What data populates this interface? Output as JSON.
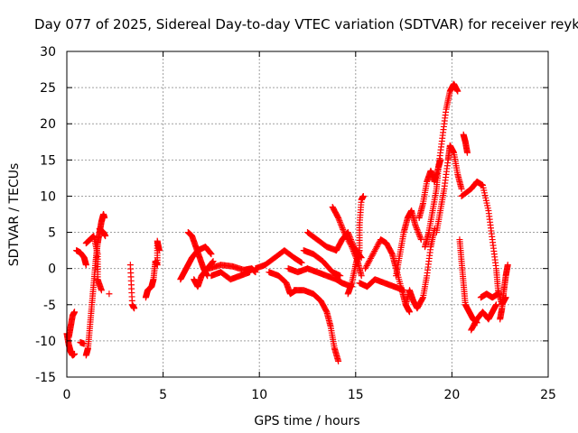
{
  "chart_data": {
    "type": "scatter",
    "title": "Day 077 of 2025, Sidereal Day-to-day VTEC variation (SDTVAR) for receiver reyk",
    "xlabel": "GPS time / hours",
    "ylabel": "SDTVAR / TECUs",
    "xlim": [
      0,
      25
    ],
    "ylim": [
      -15,
      30
    ],
    "xticks": [
      "0",
      "5",
      "10",
      "15",
      "20",
      "25"
    ],
    "yticks": [
      "-15",
      "-10",
      "-5",
      "0",
      "5",
      "10",
      "15",
      "20",
      "25",
      "30"
    ],
    "grid": true,
    "marker": "plus",
    "color": "#ff0000",
    "series": [
      {
        "name": "track-01",
        "points": [
          [
            0,
            -9
          ],
          [
            0.1,
            -10.5
          ],
          [
            0.2,
            -11.5
          ],
          [
            0.3,
            -12
          ],
          [
            0.4,
            -11.8
          ]
        ]
      },
      {
        "name": "track-02",
        "points": [
          [
            0.1,
            -9.5
          ],
          [
            0.2,
            -8
          ],
          [
            0.3,
            -6.5
          ],
          [
            0.4,
            -6
          ]
        ]
      },
      {
        "name": "track-03",
        "points": [
          [
            0.5,
            2.5
          ],
          [
            0.7,
            2.2
          ],
          [
            0.9,
            1.5
          ],
          [
            1.0,
            0.5
          ]
        ]
      },
      {
        "name": "track-04",
        "points": [
          [
            0.7,
            -10.2
          ],
          [
            0.9,
            -10.4
          ]
        ]
      },
      {
        "name": "track-05",
        "points": [
          [
            1.0,
            -12
          ],
          [
            1.1,
            -11
          ],
          [
            1.2,
            -8
          ],
          [
            1.3,
            -5
          ],
          [
            1.4,
            -2
          ],
          [
            1.5,
            1
          ],
          [
            1.6,
            3.5
          ],
          [
            1.7,
            5
          ],
          [
            1.8,
            6.5
          ],
          [
            1.9,
            7.5
          ],
          [
            1.95,
            7
          ]
        ]
      },
      {
        "name": "track-06",
        "points": [
          [
            1.0,
            3.5
          ],
          [
            1.2,
            4
          ],
          [
            1.4,
            4.5
          ],
          [
            1.6,
            2
          ],
          [
            1.6,
            -1.5
          ],
          [
            1.8,
            -3
          ]
        ]
      },
      {
        "name": "track-07",
        "points": [
          [
            1.7,
            5.5
          ],
          [
            1.9,
            5
          ],
          [
            2.0,
            4.5
          ]
        ]
      },
      {
        "name": "track-08",
        "points": [
          [
            2.2,
            -3.5
          ]
        ]
      },
      {
        "name": "track-09",
        "points": [
          [
            3.3,
            0.5
          ],
          [
            3.4,
            -5
          ],
          [
            3.5,
            -5.5
          ]
        ]
      },
      {
        "name": "track-10",
        "points": [
          [
            4.1,
            -4
          ],
          [
            4.2,
            -3
          ],
          [
            4.4,
            -2.5
          ],
          [
            4.5,
            -1.5
          ],
          [
            4.6,
            1
          ],
          [
            4.7,
            0.5
          ],
          [
            4.7,
            3.8
          ],
          [
            4.8,
            2.5
          ]
        ]
      },
      {
        "name": "track-11",
        "points": [
          [
            5.9,
            -1.5
          ],
          [
            6.1,
            -0.5
          ],
          [
            6.3,
            0.5
          ],
          [
            6.5,
            1.5
          ],
          [
            6.8,
            2.5
          ],
          [
            7.2,
            3
          ],
          [
            7.5,
            2
          ]
        ]
      },
      {
        "name": "track-12",
        "points": [
          [
            6.3,
            5
          ],
          [
            6.5,
            4.5
          ],
          [
            6.7,
            3
          ],
          [
            6.9,
            1.5
          ],
          [
            7.1,
            0
          ],
          [
            7.3,
            -1
          ]
        ]
      },
      {
        "name": "track-13",
        "points": [
          [
            6.6,
            -1.5
          ],
          [
            6.8,
            -2.5
          ],
          [
            7.0,
            -1
          ],
          [
            7.3,
            0
          ],
          [
            7.6,
            1
          ]
        ]
      },
      {
        "name": "track-14",
        "points": [
          [
            7.4,
            0
          ],
          [
            8.0,
            0.5
          ],
          [
            8.6,
            0.3
          ],
          [
            9.2,
            -0.2
          ],
          [
            9.6,
            0
          ],
          [
            9.8,
            -0.5
          ]
        ]
      },
      {
        "name": "track-15",
        "points": [
          [
            7.5,
            -1
          ],
          [
            8.0,
            -0.5
          ],
          [
            8.5,
            -1.5
          ],
          [
            9.0,
            -1
          ],
          [
            9.5,
            -0.5
          ]
        ]
      },
      {
        "name": "track-16",
        "points": [
          [
            9.8,
            0
          ],
          [
            10.3,
            0.5
          ],
          [
            10.8,
            1.5
          ],
          [
            11.3,
            2.5
          ],
          [
            11.8,
            1.5
          ],
          [
            12.2,
            0.8
          ]
        ]
      },
      {
        "name": "track-17",
        "points": [
          [
            10.5,
            -0.5
          ],
          [
            11,
            -1
          ],
          [
            11.4,
            -2
          ],
          [
            11.6,
            -3.5
          ],
          [
            11.9,
            -3
          ]
        ]
      },
      {
        "name": "track-18",
        "points": [
          [
            11.8,
            -3
          ],
          [
            12.3,
            -3
          ],
          [
            12.8,
            -3.5
          ],
          [
            13.2,
            -4.5
          ],
          [
            13.5,
            -6
          ],
          [
            13.7,
            -8
          ],
          [
            13.9,
            -11
          ],
          [
            14.1,
            -12.8
          ]
        ]
      },
      {
        "name": "track-19",
        "points": [
          [
            11.5,
            0
          ],
          [
            12,
            -0.5
          ],
          [
            12.5,
            0
          ],
          [
            13,
            -0.5
          ],
          [
            13.5,
            -1
          ],
          [
            14,
            -1.5
          ],
          [
            14.3,
            -2
          ],
          [
            14.8,
            -2.5
          ]
        ]
      },
      {
        "name": "track-20",
        "points": [
          [
            12.3,
            2.5
          ],
          [
            12.8,
            2
          ],
          [
            13.3,
            1
          ],
          [
            13.8,
            -0.5
          ],
          [
            14.2,
            -1
          ]
        ]
      },
      {
        "name": "track-21",
        "points": [
          [
            12.5,
            5
          ],
          [
            13,
            4
          ],
          [
            13.5,
            3
          ],
          [
            14,
            2.5
          ],
          [
            14.3,
            4
          ],
          [
            14.6,
            5
          ],
          [
            14.9,
            3
          ],
          [
            15.3,
            1.5
          ]
        ]
      },
      {
        "name": "track-22",
        "points": [
          [
            13.8,
            8.5
          ],
          [
            14.1,
            7
          ],
          [
            14.4,
            5
          ],
          [
            14.8,
            3
          ],
          [
            15.1,
            1
          ],
          [
            15.3,
            -1
          ]
        ]
      },
      {
        "name": "track-23",
        "points": [
          [
            14.6,
            -3.5
          ],
          [
            14.8,
            -2
          ],
          [
            15.0,
            0.5
          ],
          [
            15.2,
            2.5
          ],
          [
            15.2,
            6
          ],
          [
            15.3,
            9.5
          ],
          [
            15.4,
            10
          ]
        ]
      },
      {
        "name": "track-24",
        "points": [
          [
            15.2,
            -2
          ],
          [
            15.6,
            -2.5
          ],
          [
            16.0,
            -1.5
          ],
          [
            16.5,
            -2
          ],
          [
            17,
            -2.5
          ],
          [
            17.5,
            -3
          ]
        ]
      },
      {
        "name": "track-25",
        "points": [
          [
            15.5,
            0
          ],
          [
            15.9,
            2
          ],
          [
            16.3,
            4
          ],
          [
            16.6,
            3.5
          ],
          [
            16.9,
            2
          ],
          [
            17.1,
            0
          ],
          [
            17.4,
            -3
          ],
          [
            17.6,
            -5
          ],
          [
            17.8,
            -6
          ]
        ]
      },
      {
        "name": "track-26",
        "points": [
          [
            17.1,
            -1
          ],
          [
            17.3,
            2
          ],
          [
            17.5,
            5
          ],
          [
            17.7,
            7
          ],
          [
            17.9,
            8
          ],
          [
            18.1,
            6
          ],
          [
            18.4,
            4
          ]
        ]
      },
      {
        "name": "track-27",
        "points": [
          [
            17.6,
            -5
          ],
          [
            17.8,
            -3
          ],
          [
            18,
            -4.5
          ],
          [
            18.2,
            -5.5
          ],
          [
            18.5,
            -4
          ],
          [
            18.7,
            -1
          ],
          [
            18.9,
            3
          ],
          [
            19.1,
            5.5
          ]
        ]
      },
      {
        "name": "track-28",
        "points": [
          [
            18.3,
            7
          ],
          [
            18.5,
            9
          ],
          [
            18.7,
            12
          ],
          [
            18.9,
            13.5
          ],
          [
            19.1,
            12
          ],
          [
            19.3,
            14
          ],
          [
            19.4,
            15
          ]
        ]
      },
      {
        "name": "track-29",
        "points": [
          [
            18.6,
            3
          ],
          [
            18.8,
            5
          ],
          [
            19.0,
            8
          ],
          [
            19.2,
            11
          ],
          [
            19.3,
            14
          ],
          [
            19.5,
            18
          ],
          [
            19.7,
            22
          ],
          [
            19.9,
            24.5
          ],
          [
            20.1,
            25.5
          ],
          [
            20.3,
            24.5
          ]
        ]
      },
      {
        "name": "track-30",
        "points": [
          [
            19.2,
            5
          ],
          [
            19.4,
            8
          ],
          [
            19.6,
            11
          ],
          [
            19.8,
            15
          ],
          [
            19.9,
            17
          ],
          [
            20.1,
            16
          ],
          [
            20.3,
            13
          ],
          [
            20.5,
            11
          ]
        ]
      },
      {
        "name": "track-31",
        "points": [
          [
            20.4,
            4
          ],
          [
            20.5,
            1
          ],
          [
            20.6,
            -2
          ],
          [
            20.7,
            -5
          ],
          [
            20.9,
            -6
          ],
          [
            21.1,
            -7
          ],
          [
            21.3,
            -7.5
          ]
        ]
      },
      {
        "name": "track-32",
        "points": [
          [
            20.5,
            10
          ],
          [
            21,
            11
          ],
          [
            21.3,
            12
          ],
          [
            21.6,
            11.5
          ],
          [
            21.9,
            8
          ],
          [
            22.1,
            4
          ],
          [
            22.3,
            0
          ],
          [
            22.4,
            -3
          ],
          [
            22.6,
            -5
          ],
          [
            22.8,
            -4
          ]
        ]
      },
      {
        "name": "track-33",
        "points": [
          [
            20.6,
            18.5
          ],
          [
            20.7,
            17.5
          ],
          [
            20.8,
            16
          ]
        ]
      },
      {
        "name": "track-34",
        "points": [
          [
            21.0,
            -8.5
          ],
          [
            21.3,
            -7
          ],
          [
            21.6,
            -6
          ],
          [
            21.9,
            -7
          ],
          [
            22.1,
            -6
          ],
          [
            22.3,
            -5
          ]
        ]
      },
      {
        "name": "track-35",
        "points": [
          [
            21.5,
            -4
          ],
          [
            21.8,
            -3.5
          ],
          [
            22.1,
            -4
          ],
          [
            22.4,
            -3.5
          ]
        ]
      },
      {
        "name": "track-36",
        "points": [
          [
            22.5,
            -7
          ],
          [
            22.6,
            -5.5
          ],
          [
            22.7,
            -3
          ],
          [
            22.8,
            -1
          ],
          [
            22.9,
            0.5
          ]
        ]
      }
    ]
  }
}
